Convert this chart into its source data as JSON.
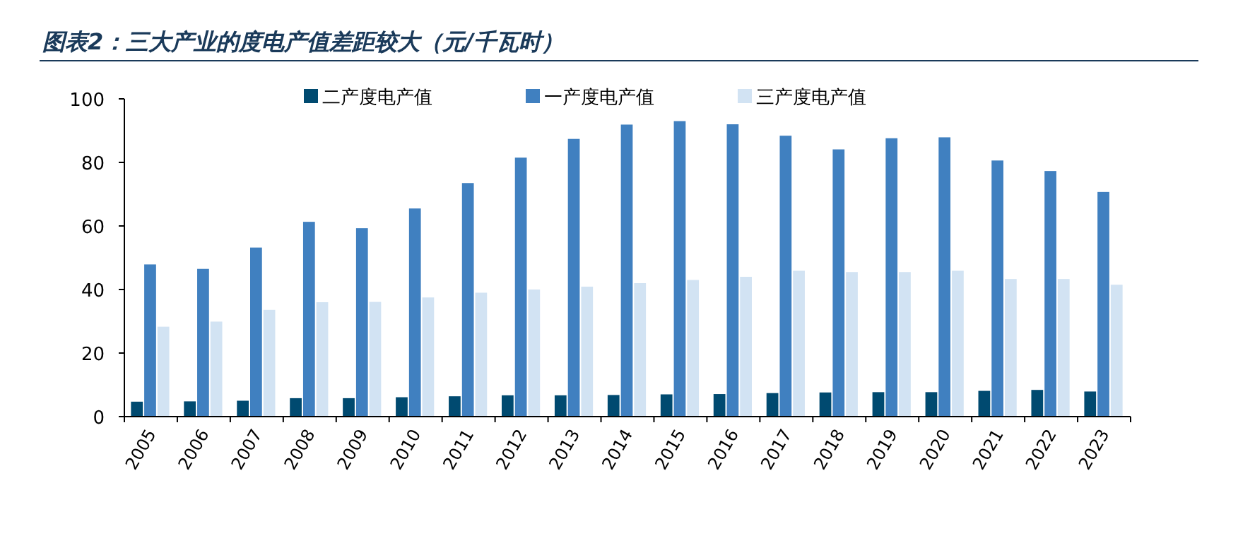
{
  "chart_data": {
    "type": "bar",
    "title": "图表2：三大产业的度电产值差距较大（元/千瓦时）",
    "categories": [
      "2005",
      "2006",
      "2007",
      "2008",
      "2009",
      "2010",
      "2011",
      "2012",
      "2013",
      "2014",
      "2015",
      "2016",
      "2017",
      "2018",
      "2019",
      "2020",
      "2021",
      "2022",
      "2023"
    ],
    "series": [
      {
        "name": "二产度电产值",
        "color": "#004a70",
        "values": [
          4.7,
          4.8,
          5.0,
          5.8,
          5.8,
          6.1,
          6.4,
          6.7,
          6.7,
          6.8,
          7.0,
          7.1,
          7.4,
          7.6,
          7.7,
          7.7,
          8.1,
          8.4,
          7.9
        ]
      },
      {
        "name": "一产度电产值",
        "color": "#4080c0",
        "values": [
          47.9,
          46.5,
          53.2,
          61.3,
          59.3,
          65.5,
          73.5,
          81.5,
          87.4,
          91.9,
          93.0,
          92.0,
          88.4,
          84.1,
          87.6,
          87.9,
          80.6,
          77.3,
          70.7
        ]
      },
      {
        "name": "三产度电产值",
        "color": "#d2e3f3",
        "values": [
          28.3,
          29.9,
          33.6,
          36.0,
          36.1,
          37.5,
          39.0,
          40.0,
          40.9,
          42.0,
          43.0,
          44.0,
          45.9,
          45.5,
          45.5,
          45.9,
          43.3,
          43.3,
          41.5
        ]
      }
    ],
    "ylim": [
      0,
      100
    ],
    "yticks": [
      0,
      20,
      40,
      60,
      80,
      100
    ],
    "grid": false,
    "legend": "top"
  }
}
